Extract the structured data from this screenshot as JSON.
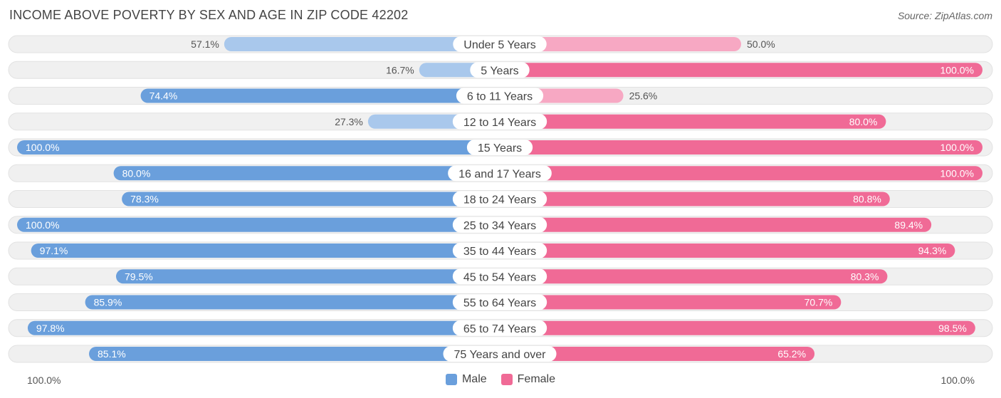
{
  "title": "INCOME ABOVE POVERTY BY SEX AND AGE IN ZIP CODE 42202",
  "source": "Source: ZipAtlas.com",
  "colors": {
    "male_strong": "#6a9fdc",
    "male_light": "#a9c8ec",
    "female_strong": "#f06a96",
    "female_light": "#f7a8c3",
    "row_background": "#f0f0f0"
  },
  "legend": {
    "male": "Male",
    "female": "Female"
  },
  "axis": {
    "left_label": "100.0%",
    "right_label": "100.0%"
  },
  "chart_data": {
    "type": "bar",
    "orientation": "horizontal-diverging",
    "title": "INCOME ABOVE POVERTY BY SEX AND AGE IN ZIP CODE 42202",
    "xlim": [
      0,
      100
    ],
    "unit": "%",
    "categories": [
      "Under 5 Years",
      "5 Years",
      "6 to 11 Years",
      "12 to 14 Years",
      "15 Years",
      "16 and 17 Years",
      "18 to 24 Years",
      "25 to 34 Years",
      "35 to 44 Years",
      "45 to 54 Years",
      "55 to 64 Years",
      "65 to 74 Years",
      "75 Years and over"
    ],
    "series": [
      {
        "name": "Male",
        "values": [
          57.1,
          16.7,
          74.4,
          27.3,
          100.0,
          80.0,
          78.3,
          100.0,
          97.1,
          79.5,
          85.9,
          97.8,
          85.1
        ],
        "labels": [
          "57.1%",
          "16.7%",
          "74.4%",
          "27.3%",
          "100.0%",
          "80.0%",
          "78.3%",
          "100.0%",
          "97.1%",
          "79.5%",
          "85.9%",
          "97.8%",
          "85.1%"
        ]
      },
      {
        "name": "Female",
        "values": [
          50.0,
          100.0,
          25.6,
          80.0,
          100.0,
          100.0,
          80.8,
          89.4,
          94.3,
          80.3,
          70.7,
          98.5,
          65.2
        ],
        "labels": [
          "50.0%",
          "100.0%",
          "25.6%",
          "80.0%",
          "100.0%",
          "100.0%",
          "80.8%",
          "89.4%",
          "94.3%",
          "80.3%",
          "70.7%",
          "98.5%",
          "65.2%"
        ]
      }
    ],
    "legend_position": "bottom-center"
  }
}
